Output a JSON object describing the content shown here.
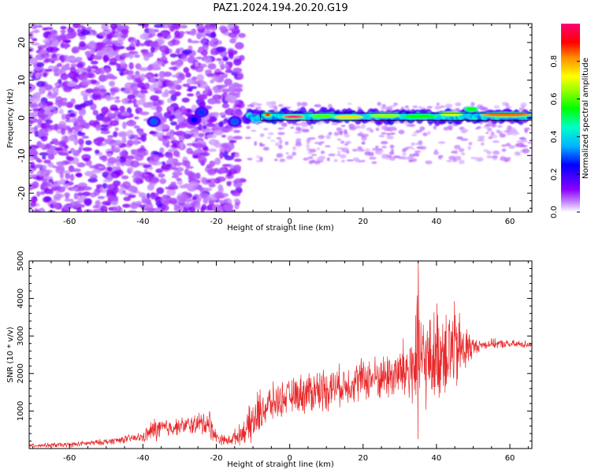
{
  "title": "PAZ1.2024.194.20.20.G19",
  "chart_data": [
    {
      "type": "heatmap",
      "xlabel": "Height of straight line (km)",
      "ylabel": "Frequency (Hz)",
      "xlim": [
        -71,
        66
      ],
      "ylim": [
        -25,
        25
      ],
      "xticks": [
        -60,
        -40,
        -20,
        0,
        20,
        40,
        60
      ],
      "yticks": [
        -20,
        -10,
        0,
        10,
        20
      ],
      "colorbar": {
        "label": "Normalized spectral amplitude",
        "ticks": [
          0.0,
          0.2,
          0.4,
          0.6,
          0.8
        ],
        "range": [
          0,
          1
        ],
        "colormap": "gist_rainbow_reversed"
      },
      "features": [
        {
          "desc": "diffuse noise",
          "x_range": [
            -71,
            -13
          ],
          "y_range": [
            -25,
            25
          ],
          "amplitude": 0.1
        },
        {
          "desc": "signal track",
          "x_range": [
            -11,
            66
          ],
          "frequency_hz": 0.5,
          "amplitude": 0.8
        }
      ],
      "blobs": [
        {
          "x": -37,
          "y": -1,
          "amp": 0.3
        },
        {
          "x": -26,
          "y": -0.5,
          "amp": 0.25
        },
        {
          "x": -24,
          "y": 1.5,
          "amp": 0.28
        },
        {
          "x": -15,
          "y": -1,
          "amp": 0.3
        }
      ],
      "track_segments": [
        {
          "x1": -10,
          "x2": -8,
          "f": -0.5,
          "amp": 0.35
        },
        {
          "x1": -7,
          "x2": -5,
          "f": 0.8,
          "amp": 0.9
        },
        {
          "x1": -2,
          "x2": 4,
          "f": 0.3,
          "amp": 1.0
        },
        {
          "x1": 6,
          "x2": 12,
          "f": 0.5,
          "amp": 0.6
        },
        {
          "x1": 12,
          "x2": 20,
          "f": 0.2,
          "amp": 0.75
        },
        {
          "x1": 22,
          "x2": 30,
          "f": 0.6,
          "amp": 0.65
        },
        {
          "x1": 31,
          "x2": 40,
          "f": 0.4,
          "amp": 0.55
        },
        {
          "x1": 41,
          "x2": 47,
          "f": 1.0,
          "amp": 0.7
        },
        {
          "x1": 48,
          "x2": 51,
          "f": 2.3,
          "amp": 0.55
        },
        {
          "x1": 52,
          "x2": 66,
          "f": 0.8,
          "amp": 0.85
        }
      ]
    },
    {
      "type": "line",
      "xlabel": "Height of straight line (km)",
      "ylabel": "SNR (10 * v/v)",
      "xlim": [
        -71,
        66
      ],
      "ylim": [
        0,
        5000
      ],
      "xticks": [
        -60,
        -40,
        -20,
        0,
        20,
        40,
        60
      ],
      "yticks": [
        1000,
        2000,
        3000,
        4000,
        5000
      ],
      "color": "#e8282a",
      "envelope": {
        "x": [
          -71,
          -60,
          -50,
          -45,
          -40,
          -37,
          -33,
          -30,
          -25,
          -22,
          -20,
          -17,
          -14,
          -12,
          -10,
          -8,
          -5,
          0,
          5,
          10,
          15,
          20,
          25,
          30,
          32,
          34,
          35,
          36,
          38,
          40,
          42,
          45,
          47,
          49,
          50,
          52,
          55,
          60,
          66
        ],
        "base": [
          80,
          100,
          180,
          250,
          300,
          500,
          550,
          600,
          650,
          700,
          300,
          200,
          350,
          500,
          700,
          1000,
          1200,
          1400,
          1500,
          1600,
          1700,
          1850,
          1900,
          2000,
          2100,
          2200,
          2500,
          2300,
          2350,
          2500,
          2700,
          2600,
          2650,
          2700,
          2700,
          2750,
          2800,
          2780,
          2780
        ],
        "amp": [
          60,
          80,
          100,
          120,
          150,
          400,
          300,
          250,
          350,
          500,
          200,
          150,
          300,
          400,
          800,
          700,
          600,
          500,
          700,
          700,
          600,
          700,
          700,
          900,
          1200,
          1600,
          2600,
          1700,
          1300,
          1600,
          1600,
          1500,
          1000,
          600,
          300,
          150,
          150,
          130,
          120
        ]
      }
    }
  ]
}
